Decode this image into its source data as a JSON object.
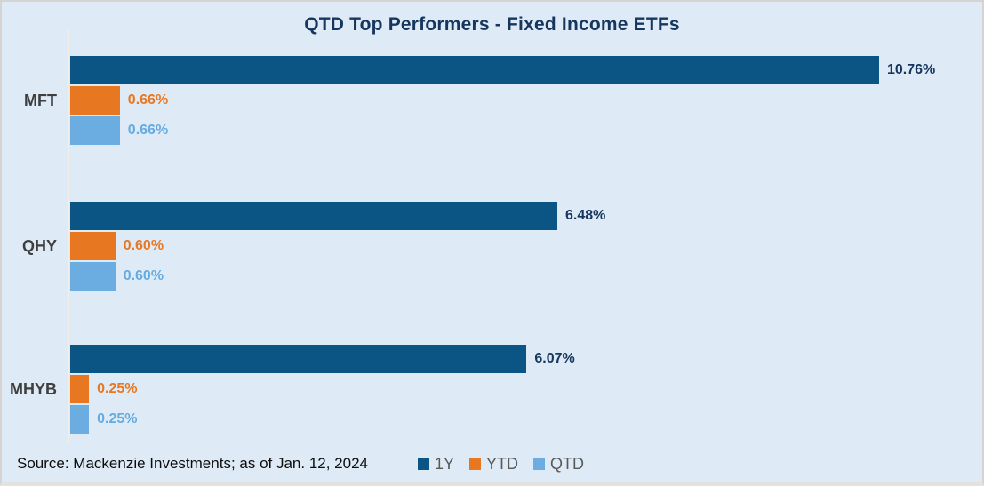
{
  "title": "QTD Top Performers - Fixed Income ETFs",
  "source": "Source: Mackenzie Investments; as of Jan. 12, 2024",
  "colors": {
    "background": "#DEEBF7",
    "title_text": "#17365D",
    "category_text": "#3F3F3F",
    "legend_text": "#595959",
    "source_text": "#0D0D0D",
    "axis_line": "#F0EEEB",
    "series_1y": "#0B5585",
    "series_ytd": "#E87722",
    "series_qtd": "#6BADE0"
  },
  "legend": [
    {
      "label": "1Y",
      "color": "#0B5585"
    },
    {
      "label": "YTD",
      "color": "#E87722"
    },
    {
      "label": "QTD",
      "color": "#6BADE0"
    }
  ],
  "chart_data": {
    "type": "bar",
    "orientation": "horizontal",
    "title": "QTD Top Performers - Fixed Income ETFs",
    "categories": [
      "MFT",
      "QHY",
      "MHYB"
    ],
    "series": [
      {
        "name": "1Y",
        "color": "#0B5585",
        "label_color": "#17365D",
        "values": [
          10.76,
          6.48,
          6.07
        ],
        "labels": [
          "10.76%",
          "6.48%",
          "6.07%"
        ]
      },
      {
        "name": "YTD",
        "color": "#E87722",
        "label_color": "#E87722",
        "values": [
          0.66,
          0.6,
          0.25
        ],
        "labels": [
          "0.66%",
          "0.60%",
          "0.25%"
        ]
      },
      {
        "name": "QTD",
        "color": "#6BADE0",
        "label_color": "#64ABE0",
        "values": [
          0.66,
          0.6,
          0.25
        ],
        "labels": [
          "0.66%",
          "0.60%",
          "0.25%"
        ]
      }
    ],
    "xlim": [
      0,
      10.76
    ],
    "value_suffix": "%",
    "value_labels_shown": true,
    "grid": false,
    "legend_position": "bottom-center",
    "xlabel": "",
    "ylabel": ""
  }
}
